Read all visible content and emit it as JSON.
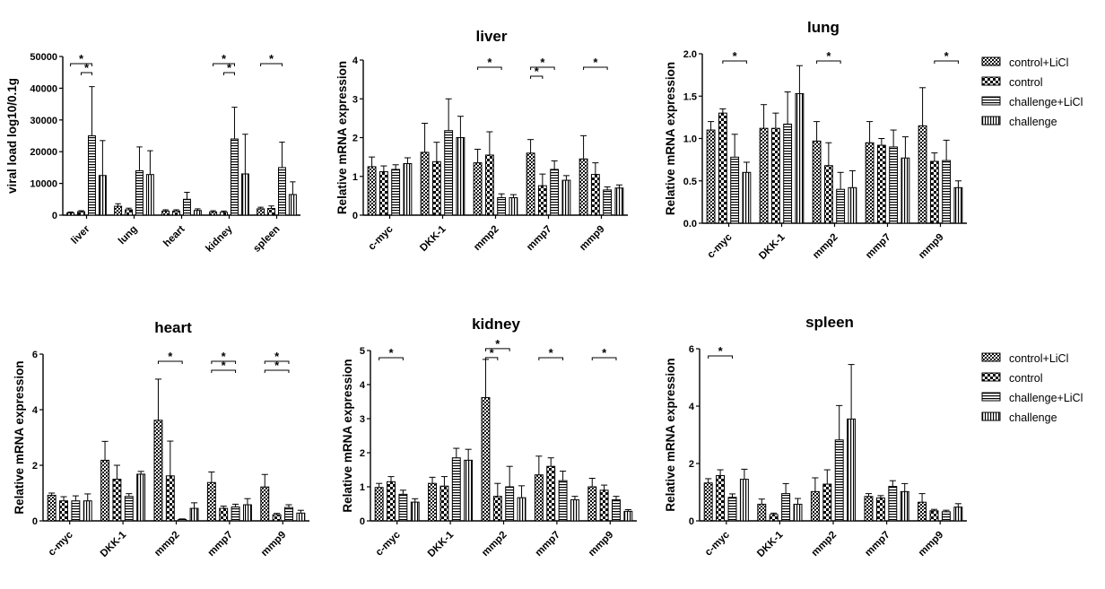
{
  "patterns": {
    "control+LiCl": "crosshatch",
    "control": "checker",
    "challenge+LiCl": "horizontal",
    "challenge": "vertical"
  },
  "legends": [
    {
      "entries": [
        "control+LiCl",
        "control",
        "challenge+LiCl",
        "challenge"
      ]
    },
    {
      "entries": [
        "control+LiCl",
        "control",
        "challenge+LiCl",
        "challenge"
      ]
    }
  ],
  "chart_data": [
    {
      "id": "viral",
      "type": "bar",
      "title": "",
      "ylabel": "viral load log10/0.1g",
      "categories": [
        "liver",
        "lung",
        "heart",
        "kidney",
        "spleen"
      ],
      "ylim": [
        0,
        50000
      ],
      "yticks": [
        0,
        10000,
        20000,
        30000,
        40000,
        50000
      ],
      "series": [
        {
          "name": "control+LiCl",
          "values": [
            700,
            2800,
            1300,
            1000,
            2000
          ],
          "errors": [
            300,
            800,
            400,
            400,
            500
          ]
        },
        {
          "name": "control",
          "values": [
            1100,
            1700,
            1300,
            900,
            2100
          ],
          "errors": [
            300,
            500,
            400,
            400,
            800
          ]
        },
        {
          "name": "challenge+LiCl",
          "values": [
            25000,
            14000,
            5000,
            24000,
            15000
          ],
          "errors": [
            15500,
            7500,
            2200,
            10000,
            8000
          ]
        },
        {
          "name": "challenge",
          "values": [
            12500,
            12800,
            1500,
            13000,
            6500
          ],
          "errors": [
            11000,
            7500,
            500,
            12500,
            4000
          ]
        }
      ],
      "sig": [
        {
          "cat": 0,
          "from": 0,
          "to": 2,
          "level": 0
        },
        {
          "cat": 0,
          "from": 1,
          "to": 2,
          "level": 1
        },
        {
          "cat": 3,
          "from": 0,
          "to": 2,
          "level": 0
        },
        {
          "cat": 3,
          "from": 1,
          "to": 2,
          "level": 1
        },
        {
          "cat": 4,
          "from": 0,
          "to": 2,
          "level": 0
        }
      ],
      "sig_label": "*"
    },
    {
      "id": "liver",
      "type": "bar",
      "title": "liver",
      "ylabel": "Relative  mRNA expression",
      "categories": [
        "c-myc",
        "DKK-1",
        "mmp2",
        "mmp7",
        "mmp9"
      ],
      "ylim": [
        0,
        4
      ],
      "yticks": [
        0,
        1,
        2,
        3,
        4
      ],
      "series": [
        {
          "name": "control+LiCl",
          "values": [
            1.25,
            1.62,
            1.35,
            1.6,
            1.45
          ],
          "errors": [
            0.25,
            0.75,
            0.35,
            0.35,
            0.6
          ]
        },
        {
          "name": "control",
          "values": [
            1.12,
            1.38,
            1.55,
            0.76,
            1.05
          ],
          "errors": [
            0.15,
            0.5,
            0.6,
            0.3,
            0.3
          ]
        },
        {
          "name": "challenge+LiCl",
          "values": [
            1.18,
            2.18,
            0.45,
            1.18,
            0.65
          ],
          "errors": [
            0.12,
            0.82,
            0.1,
            0.22,
            0.08
          ]
        },
        {
          "name": "challenge",
          "values": [
            1.33,
            2.0,
            0.45,
            0.9,
            0.7
          ],
          "errors": [
            0.15,
            0.55,
            0.08,
            0.12,
            0.08
          ]
        }
      ],
      "sig": [
        {
          "cat": 2,
          "from": 0,
          "to": 2,
          "level": 0
        },
        {
          "cat": 3,
          "from": 0,
          "to": 2,
          "level": 0
        },
        {
          "cat": 3,
          "from": 0,
          "to": 1,
          "level": -1
        },
        {
          "cat": 4,
          "from": 0,
          "to": 2,
          "level": 0
        }
      ],
      "sig_label": "*"
    },
    {
      "id": "lung",
      "type": "bar",
      "title": "lung",
      "ylabel": "Relative  mRNA expression",
      "categories": [
        "c-myc",
        "DKK-1",
        "mmp2",
        "mmp7",
        "mmp9"
      ],
      "ylim": [
        0,
        2
      ],
      "yticks": [
        0.0,
        0.5,
        1.0,
        1.5,
        2.0
      ],
      "series": [
        {
          "name": "control+LiCl",
          "values": [
            1.1,
            1.12,
            0.97,
            0.95,
            1.15
          ],
          "errors": [
            0.1,
            0.28,
            0.23,
            0.25,
            0.45
          ]
        },
        {
          "name": "control",
          "values": [
            1.3,
            1.12,
            0.68,
            0.92,
            0.73
          ],
          "errors": [
            0.05,
            0.18,
            0.27,
            0.08,
            0.1
          ]
        },
        {
          "name": "challenge+LiCl",
          "values": [
            0.78,
            1.17,
            0.4,
            0.9,
            0.74
          ],
          "errors": [
            0.27,
            0.38,
            0.2,
            0.2,
            0.24
          ]
        },
        {
          "name": "challenge",
          "values": [
            0.6,
            1.53,
            0.42,
            0.77,
            0.42
          ],
          "errors": [
            0.12,
            0.33,
            0.2,
            0.25,
            0.08
          ]
        }
      ],
      "sig": [
        {
          "cat": 0,
          "from": 1,
          "to": 3,
          "level": 0
        },
        {
          "cat": 2,
          "from": 0,
          "to": 2,
          "level": 0
        },
        {
          "cat": 4,
          "from": 1,
          "to": 3,
          "level": 0
        }
      ],
      "sig_label": "*"
    },
    {
      "id": "heart",
      "type": "bar",
      "title": "heart",
      "ylabel": "Relative  mRNA expression",
      "categories": [
        "c-myc",
        "DKK-1",
        "mmp2",
        "mmp7",
        "mmp9"
      ],
      "ylim": [
        0,
        6
      ],
      "yticks": [
        0,
        2,
        4,
        6
      ],
      "series": [
        {
          "name": "control+LiCl",
          "values": [
            0.92,
            2.18,
            3.62,
            1.38,
            1.22
          ],
          "errors": [
            0.08,
            0.68,
            1.48,
            0.38,
            0.45
          ]
        },
        {
          "name": "control",
          "values": [
            0.72,
            1.5,
            1.62,
            0.45,
            0.22
          ],
          "errors": [
            0.15,
            0.5,
            1.25,
            0.08,
            0.05
          ]
        },
        {
          "name": "challenge+LiCl",
          "values": [
            0.72,
            0.88,
            0.05,
            0.5,
            0.48
          ],
          "errors": [
            0.18,
            0.1,
            0.02,
            0.1,
            0.1
          ]
        },
        {
          "name": "challenge",
          "values": [
            0.72,
            1.68,
            0.45,
            0.58,
            0.28
          ],
          "errors": [
            0.25,
            0.1,
            0.2,
            0.22,
            0.1
          ]
        }
      ],
      "sig": [
        {
          "cat": 2,
          "from": 0,
          "to": 2,
          "level": 0
        },
        {
          "cat": 3,
          "from": 0,
          "to": 2,
          "level": 0
        },
        {
          "cat": 3,
          "from": 0,
          "to": 2,
          "level": -1
        },
        {
          "cat": 4,
          "from": 0,
          "to": 2,
          "level": 0
        },
        {
          "cat": 4,
          "from": 0,
          "to": 2,
          "level": -1
        }
      ],
      "sig_label": "*"
    },
    {
      "id": "kidney",
      "type": "bar",
      "title": "kidney",
      "ylabel": "Relative  mRNA expression",
      "categories": [
        "c-myc",
        "DKK-1",
        "mmp2",
        "mmp7",
        "mmp9"
      ],
      "ylim": [
        0,
        5
      ],
      "yticks": [
        0,
        1,
        2,
        3,
        4,
        5
      ],
      "series": [
        {
          "name": "control+LiCl",
          "values": [
            0.98,
            1.1,
            3.62,
            1.35,
            1.0
          ],
          "errors": [
            0.12,
            0.18,
            1.12,
            0.55,
            0.25
          ]
        },
        {
          "name": "control",
          "values": [
            1.15,
            1.02,
            0.72,
            1.6,
            0.9
          ],
          "errors": [
            0.15,
            0.28,
            0.38,
            0.25,
            0.15
          ]
        },
        {
          "name": "challenge+LiCl",
          "values": [
            0.78,
            1.85,
            1.0,
            1.18,
            0.62
          ],
          "errors": [
            0.12,
            0.28,
            0.6,
            0.28,
            0.1
          ]
        },
        {
          "name": "challenge",
          "values": [
            0.55,
            1.78,
            0.68,
            0.62,
            0.28
          ],
          "errors": [
            0.1,
            0.32,
            0.35,
            0.1,
            0.05
          ]
        }
      ],
      "sig": [
        {
          "cat": 0,
          "from": 0,
          "to": 2,
          "level": 0
        },
        {
          "cat": 2,
          "from": 0,
          "to": 2,
          "level": 0
        },
        {
          "cat": 2,
          "from": 0,
          "to": 1,
          "level": -1
        },
        {
          "cat": 3,
          "from": 0,
          "to": 2,
          "level": 0
        },
        {
          "cat": 4,
          "from": 0,
          "to": 2,
          "level": 0
        }
      ],
      "sig_label": "*"
    },
    {
      "id": "spleen",
      "type": "bar",
      "title": "spleen",
      "ylabel": "Relative  mRNA expression",
      "categories": [
        "c-myc",
        "DKK-1",
        "mmp2",
        "mmp7",
        "mmp9"
      ],
      "ylim": [
        0,
        6
      ],
      "yticks": [
        0,
        2,
        4,
        6
      ],
      "series": [
        {
          "name": "control+LiCl",
          "values": [
            1.32,
            0.58,
            1.02,
            0.85,
            0.65
          ],
          "errors": [
            0.15,
            0.18,
            0.48,
            0.1,
            0.3
          ]
        },
        {
          "name": "control",
          "values": [
            1.58,
            0.22,
            1.28,
            0.8,
            0.35
          ],
          "errors": [
            0.2,
            0.05,
            0.5,
            0.08,
            0.05
          ]
        },
        {
          "name": "challenge+LiCl",
          "values": [
            0.82,
            0.95,
            2.82,
            1.2,
            0.32
          ],
          "errors": [
            0.12,
            0.35,
            1.2,
            0.2,
            0.05
          ]
        },
        {
          "name": "challenge",
          "values": [
            1.45,
            0.58,
            3.55,
            1.02,
            0.48
          ],
          "errors": [
            0.35,
            0.2,
            1.9,
            0.28,
            0.12
          ]
        }
      ],
      "sig": [
        {
          "cat": 0,
          "from": 0,
          "to": 2,
          "level": 0
        }
      ],
      "sig_label": "*"
    }
  ]
}
